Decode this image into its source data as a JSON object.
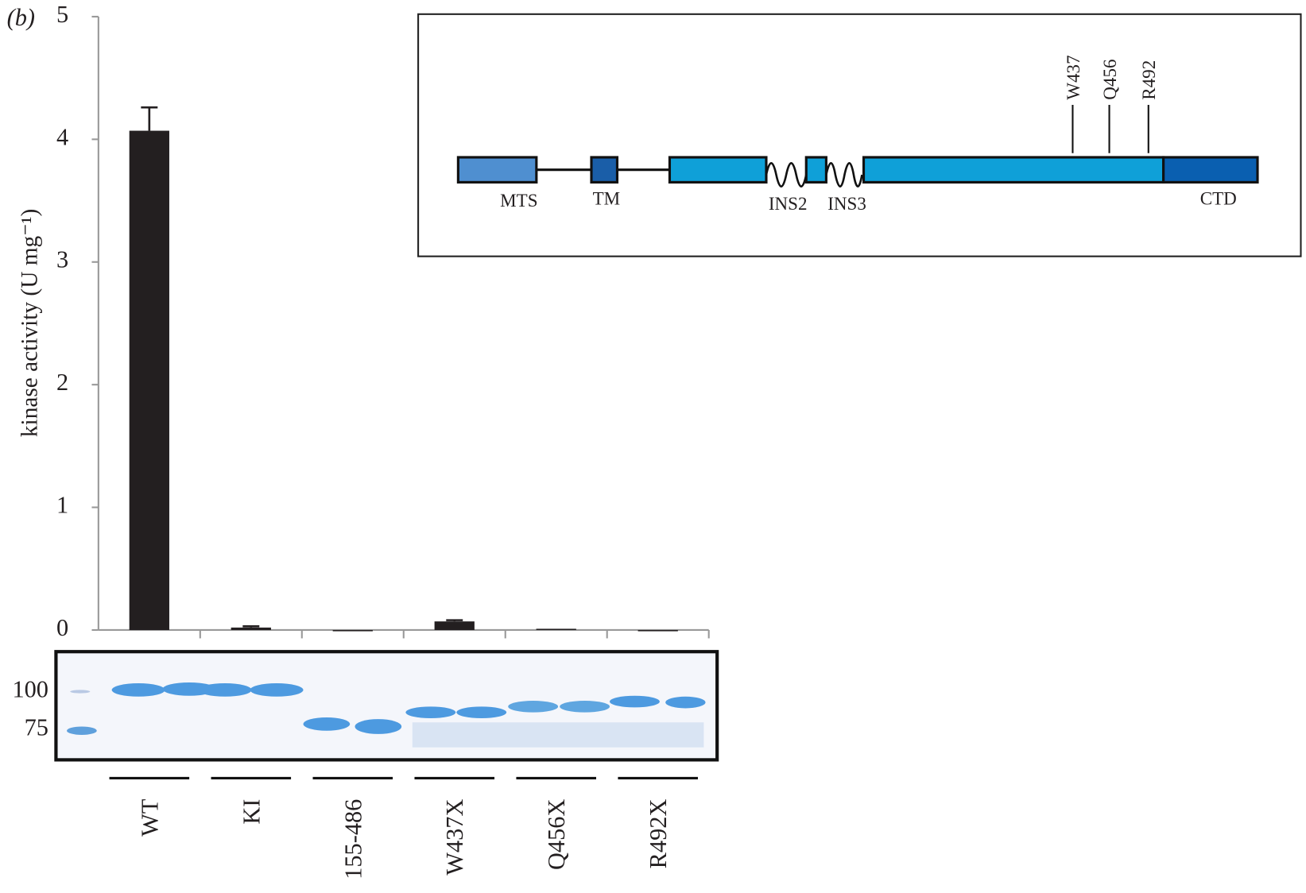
{
  "chart_data": {
    "type": "bar",
    "panel_label": "(b)",
    "ylabel": "kinase activity (U mg⁻¹)",
    "categories": [
      "WT",
      "KI",
      "155-486",
      "W437X",
      "Q456X",
      "R492X"
    ],
    "values": [
      4.07,
      0.02,
      0,
      0.07,
      0.01,
      0
    ],
    "errors": [
      0.19,
      0.01,
      0,
      0.01,
      0,
      0
    ],
    "color": "#231f20",
    "ylim": [
      0,
      5
    ],
    "yticks": [
      0,
      1,
      2,
      3,
      4,
      5
    ]
  },
  "gel": {
    "markers": [
      "100",
      "75"
    ]
  },
  "diagram": {
    "domains": [
      "MTS",
      "TM",
      "INS2",
      "INS3",
      "CTD"
    ],
    "sites": [
      "W437",
      "Q456",
      "R492"
    ]
  }
}
